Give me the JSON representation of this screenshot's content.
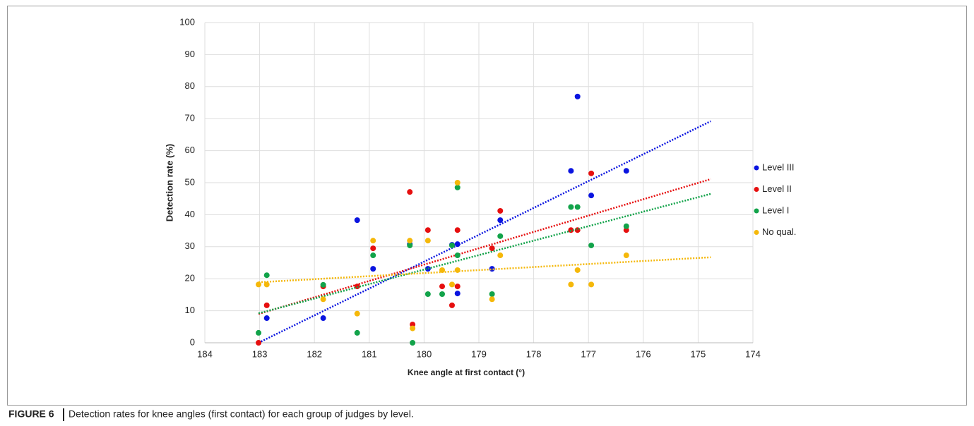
{
  "chart_data": {
    "type": "scatter",
    "x_label": "Knee angle at first contact (°)",
    "y_label": "Detection rate (%)",
    "xlim": [
      184,
      174
    ],
    "ylim": [
      0,
      100
    ],
    "xticks": [
      184,
      183,
      182,
      181,
      180,
      179,
      178,
      177,
      176,
      175,
      174
    ],
    "yticks": [
      0,
      10,
      20,
      30,
      40,
      50,
      60,
      70,
      80,
      90,
      100
    ],
    "grid": true,
    "legend": "right",
    "series": [
      {
        "name": "Level III",
        "color": "#0a14e0",
        "x": [
          182.87,
          181.84,
          181.22,
          180.93,
          180.26,
          179.93,
          179.49,
          179.39,
          179.39,
          178.76,
          178.61,
          177.32,
          177.2,
          176.95,
          176.31
        ],
        "values": [
          7.7,
          7.7,
          38.3,
          23.1,
          30.8,
          23.1,
          30.6,
          30.8,
          15.4,
          23.1,
          38.3,
          53.7,
          76.9,
          46.0,
          53.7
        ],
        "trend": {
          "x": [
            183.02,
            174.77
          ],
          "values": [
            0,
            69.2
          ]
        }
      },
      {
        "name": "Level II",
        "color": "#e60f0f",
        "x": [
          183.02,
          182.87,
          181.84,
          181.22,
          180.93,
          180.26,
          180.21,
          179.93,
          179.67,
          179.49,
          179.39,
          179.39,
          178.76,
          178.61,
          177.32,
          177.2,
          176.95,
          176.31
        ],
        "values": [
          0,
          11.7,
          17.6,
          17.6,
          29.5,
          47.1,
          5.7,
          35.2,
          17.6,
          11.7,
          35.2,
          17.6,
          29.5,
          41.2,
          35.2,
          35.2,
          52.9,
          35.2
        ],
        "trend": {
          "x": [
            183.02,
            174.77
          ],
          "values": [
            9.0,
            51.1
          ]
        }
      },
      {
        "name": "Level I",
        "color": "#12a34a",
        "x": [
          183.02,
          182.87,
          181.84,
          181.22,
          180.93,
          180.26,
          180.21,
          179.93,
          179.67,
          179.49,
          179.39,
          179.39,
          178.76,
          178.61,
          177.32,
          177.2,
          176.95,
          176.31
        ],
        "values": [
          3.1,
          21.1,
          18.1,
          3.1,
          27.3,
          30.4,
          0,
          15.2,
          15.2,
          30.4,
          48.5,
          27.3,
          15.2,
          33.3,
          42.4,
          42.4,
          30.4,
          36.4
        ],
        "trend": {
          "x": [
            183.02,
            174.77
          ],
          "values": [
            9.2,
            46.5
          ]
        }
      },
      {
        "name": "No qual.",
        "color": "#f5b80a",
        "x": [
          183.02,
          182.87,
          181.84,
          181.22,
          180.93,
          180.26,
          180.21,
          179.93,
          179.67,
          179.49,
          179.39,
          179.39,
          178.76,
          178.61,
          177.32,
          177.2,
          176.95,
          176.31
        ],
        "values": [
          18.2,
          18.2,
          13.6,
          9.1,
          31.9,
          31.9,
          4.5,
          31.9,
          22.7,
          18.2,
          50,
          22.7,
          13.6,
          27.3,
          18.2,
          22.7,
          18.2,
          27.3
        ],
        "trend": {
          "x": [
            183.02,
            174.77
          ],
          "values": [
            18.9,
            26.7
          ]
        }
      }
    ]
  },
  "caption_label": "FIGURE 6",
  "caption": "Detection rates for knee angles (first contact) for each group of judges by level."
}
